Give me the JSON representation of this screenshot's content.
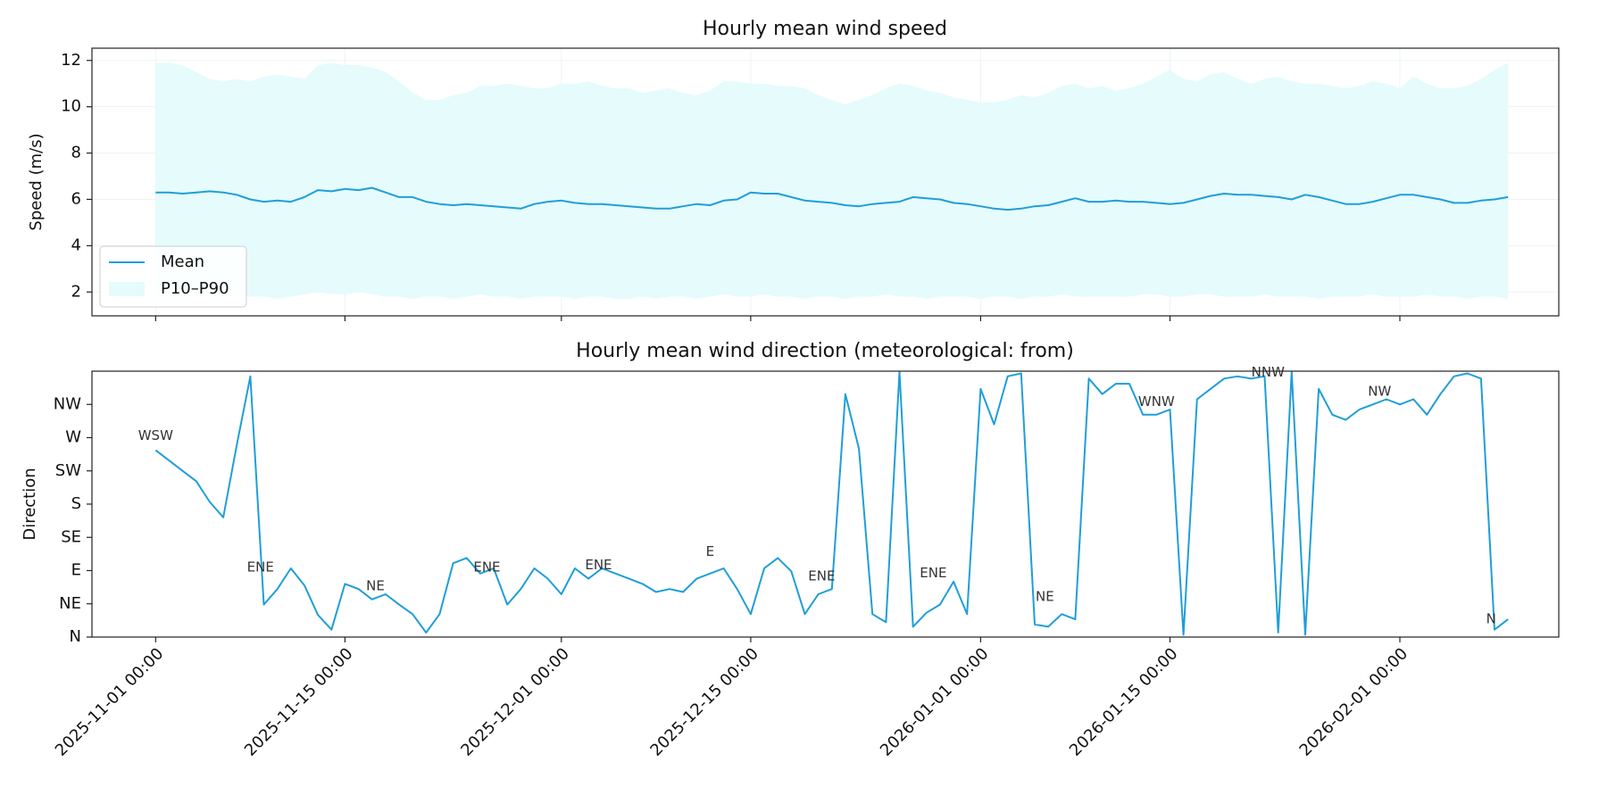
{
  "chart_data": [
    {
      "type": "line",
      "title": "Hourly mean wind speed",
      "ylabel": "Speed (m/s)",
      "ylim": [
        0.97,
        12.53
      ],
      "yticks": [
        2,
        4,
        6,
        8,
        10,
        12
      ],
      "grid": true,
      "legend": "lower left",
      "series": [
        {
          "name": "Mean",
          "color": "#1f9ed9",
          "values": [
            6.3,
            6.3,
            6.25,
            6.3,
            6.35,
            6.3,
            6.2,
            6.0,
            5.9,
            5.95,
            5.9,
            6.1,
            6.4,
            6.35,
            6.45,
            6.4,
            6.5,
            6.3,
            6.1,
            6.1,
            5.9,
            5.8,
            5.75,
            5.8,
            5.75,
            5.7,
            5.65,
            5.6,
            5.8,
            5.9,
            5.95,
            5.85,
            5.8,
            5.8,
            5.75,
            5.7,
            5.65,
            5.6,
            5.6,
            5.7,
            5.8,
            5.75,
            5.95,
            6.0,
            6.3,
            6.25,
            6.25,
            6.1,
            5.95,
            5.9,
            5.85,
            5.75,
            5.7,
            5.8,
            5.85,
            5.9,
            6.1,
            6.05,
            6.0,
            5.85,
            5.8,
            5.7,
            5.6,
            5.55,
            5.6,
            5.7,
            5.75,
            5.9,
            6.05,
            5.9,
            5.9,
            5.95,
            5.9,
            5.9,
            5.85,
            5.8,
            5.85,
            6.0,
            6.15,
            6.25,
            6.2,
            6.2,
            6.15,
            6.1,
            6.0,
            6.2,
            6.1,
            5.95,
            5.8,
            5.8,
            5.9,
            6.05,
            6.2,
            6.2,
            6.1,
            6.0,
            5.85,
            5.85,
            5.95,
            6.0,
            6.1
          ]
        }
      ],
      "band": {
        "name": "P10–P90",
        "color": "#e6fbfc",
        "lower": [
          1.8,
          1.7,
          1.8,
          1.9,
          1.8,
          1.8,
          1.9,
          1.8,
          1.8,
          1.7,
          1.8,
          1.9,
          2.0,
          1.9,
          1.9,
          2.0,
          1.9,
          1.8,
          1.8,
          1.7,
          1.8,
          1.8,
          1.7,
          1.8,
          1.9,
          1.8,
          1.8,
          1.7,
          1.8,
          1.8,
          1.8,
          1.7,
          1.8,
          1.8,
          1.7,
          1.7,
          1.8,
          1.7,
          1.8,
          1.8,
          1.7,
          1.8,
          1.9,
          1.8,
          1.8,
          1.9,
          1.8,
          1.8,
          1.7,
          1.8,
          1.8,
          1.7,
          1.8,
          1.8,
          1.9,
          1.8,
          1.8,
          1.7,
          1.8,
          1.8,
          1.8,
          1.7,
          1.8,
          1.8,
          1.7,
          1.8,
          1.8,
          1.9,
          1.8,
          1.8,
          1.8,
          1.8,
          1.8,
          1.9,
          1.9,
          1.8,
          1.8,
          1.9,
          1.9,
          1.8,
          1.8,
          1.8,
          1.9,
          1.8,
          1.8,
          1.8,
          1.7,
          1.8,
          1.8,
          1.8,
          1.9,
          1.8,
          1.8,
          1.8,
          1.9,
          1.8,
          1.8,
          1.7,
          1.8,
          1.8,
          1.7
        ],
        "upper": [
          11.9,
          11.9,
          11.8,
          11.5,
          11.2,
          11.1,
          11.2,
          11.1,
          11.3,
          11.4,
          11.3,
          11.2,
          11.8,
          11.9,
          11.8,
          11.8,
          11.7,
          11.5,
          11.1,
          10.6,
          10.3,
          10.3,
          10.5,
          10.6,
          10.9,
          10.9,
          11.0,
          10.9,
          10.8,
          10.8,
          11.0,
          11.0,
          11.1,
          10.9,
          10.8,
          10.8,
          10.6,
          10.7,
          10.8,
          10.6,
          10.5,
          10.7,
          11.1,
          11.1,
          11.0,
          11.0,
          10.9,
          10.9,
          10.8,
          10.5,
          10.3,
          10.1,
          10.3,
          10.5,
          10.8,
          11.0,
          10.9,
          10.7,
          10.6,
          10.4,
          10.3,
          10.2,
          10.2,
          10.3,
          10.5,
          10.4,
          10.6,
          10.9,
          11.0,
          10.8,
          10.9,
          10.7,
          10.8,
          11.0,
          11.3,
          11.6,
          11.2,
          11.1,
          11.4,
          11.5,
          11.2,
          11.0,
          11.2,
          11.3,
          11.1,
          11.0,
          11.0,
          10.9,
          10.8,
          10.9,
          11.1,
          11.0,
          10.8,
          11.3,
          11.0,
          10.8,
          10.8,
          10.9,
          11.2,
          11.6,
          11.9
        ]
      }
    },
    {
      "type": "line",
      "title": "Hourly mean wind direction (meteorological: from)",
      "ylabel": "Direction",
      "ylim": [
        0,
        360
      ],
      "yticks": [
        {
          "value": 0,
          "label": "N"
        },
        {
          "value": 45,
          "label": "NE"
        },
        {
          "value": 90,
          "label": "E"
        },
        {
          "value": 135,
          "label": "SE"
        },
        {
          "value": 180,
          "label": "S"
        },
        {
          "value": 225,
          "label": "SW"
        },
        {
          "value": 270,
          "label": "W"
        },
        {
          "value": 315,
          "label": "NW"
        }
      ],
      "xlim": [
        "2025-10-27 07:00",
        "2026-02-12 18:00"
      ],
      "xticks": [
        "2025-11-01 00:00",
        "2025-11-15 00:00",
        "2025-12-01 00:00",
        "2025-12-15 00:00",
        "2026-01-01 00:00",
        "2026-01-15 00:00",
        "2026-02-01 00:00"
      ],
      "x": [
        "2025-11-01 00:00",
        "2025-11-02 00:00",
        "2025-11-03 00:00",
        "2025-11-04 00:00",
        "2025-11-05 00:00",
        "2025-11-06 00:00",
        "2025-11-07 00:00",
        "2025-11-08 00:00",
        "2025-11-09 00:00",
        "2025-11-10 00:00",
        "2025-11-11 00:00",
        "2025-11-12 00:00",
        "2025-11-13 00:00",
        "2025-11-14 00:00",
        "2025-11-15 00:00",
        "2025-11-16 00:00",
        "2025-11-17 00:00",
        "2025-11-18 00:00",
        "2025-11-19 00:00",
        "2025-11-20 00:00",
        "2025-11-21 00:00",
        "2025-11-22 00:00",
        "2025-11-23 00:00",
        "2025-11-24 00:00",
        "2025-11-25 00:00",
        "2025-11-26 00:00",
        "2025-11-27 00:00",
        "2025-11-28 00:00",
        "2025-11-29 00:00",
        "2025-11-30 00:00",
        "2025-12-01 00:00",
        "2025-12-02 00:00",
        "2025-12-03 00:00",
        "2025-12-04 00:00",
        "2025-12-05 00:00",
        "2025-12-06 00:00",
        "2025-12-07 00:00",
        "2025-12-08 00:00",
        "2025-12-09 00:00",
        "2025-12-10 00:00",
        "2025-12-11 00:00",
        "2025-12-12 00:00",
        "2025-12-13 00:00",
        "2025-12-14 00:00",
        "2025-12-15 00:00",
        "2025-12-16 00:00",
        "2025-12-17 00:00",
        "2025-12-18 00:00",
        "2025-12-19 00:00",
        "2025-12-20 00:00",
        "2025-12-21 00:00",
        "2025-12-22 00:00",
        "2025-12-23 00:00",
        "2025-12-24 00:00",
        "2025-12-25 00:00",
        "2025-12-26 00:00",
        "2025-12-27 00:00",
        "2025-12-28 00:00",
        "2025-12-29 00:00",
        "2025-12-30 00:00",
        "2025-12-31 00:00",
        "2026-01-01 00:00",
        "2026-01-02 00:00",
        "2026-01-03 00:00",
        "2026-01-04 00:00",
        "2026-01-05 00:00",
        "2026-01-06 00:00",
        "2026-01-07 00:00",
        "2026-01-08 00:00",
        "2026-01-09 00:00",
        "2026-01-10 00:00",
        "2026-01-11 00:00",
        "2026-01-12 00:00",
        "2026-01-13 00:00",
        "2026-01-14 00:00",
        "2026-01-15 00:00",
        "2026-01-16 00:00",
        "2026-01-17 00:00",
        "2026-01-18 00:00",
        "2026-01-19 00:00",
        "2026-01-20 00:00",
        "2026-01-21 00:00",
        "2026-01-22 00:00",
        "2026-01-23 00:00",
        "2026-01-24 00:00",
        "2026-01-25 00:00",
        "2026-01-26 00:00",
        "2026-01-27 00:00",
        "2026-01-28 00:00",
        "2026-01-29 00:00",
        "2026-01-30 00:00",
        "2026-01-31 00:00",
        "2026-02-01 00:00",
        "2026-02-02 00:00",
        "2026-02-03 00:00",
        "2026-02-04 00:00",
        "2026-02-05 00:00",
        "2026-02-06 00:00",
        "2026-02-07 00:00",
        "2026-02-08 00:00",
        "2026-02-09 00:00"
      ],
      "color": "#1f9ed9",
      "values": [
        253,
        239,
        225,
        211,
        183,
        162,
        260,
        353,
        44,
        65,
        93,
        70,
        30,
        10,
        72,
        65,
        51,
        58,
        44,
        31,
        6,
        31,
        100,
        107,
        86,
        93,
        44,
        65,
        93,
        79,
        58,
        93,
        79,
        93,
        86,
        79,
        72,
        61,
        65,
        61,
        79,
        86,
        93,
        65,
        31,
        93,
        107,
        89,
        31,
        58,
        65,
        329,
        255,
        31,
        20,
        359,
        14,
        33,
        44,
        75,
        31,
        336,
        288,
        353,
        357,
        17,
        14,
        31,
        24,
        350,
        329,
        343,
        343,
        301,
        301,
        308,
        3,
        322,
        336,
        350,
        353,
        350,
        353,
        6,
        359,
        3,
        336,
        301,
        294,
        308,
        315,
        322,
        315,
        322,
        301,
        329,
        353,
        357,
        350,
        10,
        24
      ],
      "annotations": [
        {
          "x": "2025-11-01 00:00",
          "y": 254,
          "text": "WSW"
        },
        {
          "x": "2025-11-08 18:00",
          "y": 76,
          "text": "ENE"
        },
        {
          "x": "2025-11-17 06:00",
          "y": 51,
          "text": "NE"
        },
        {
          "x": "2025-11-25 12:00",
          "y": 76,
          "text": "ENE"
        },
        {
          "x": "2025-12-03 18:00",
          "y": 79,
          "text": "ENE"
        },
        {
          "x": "2025-12-12 00:00",
          "y": 97,
          "text": "E"
        },
        {
          "x": "2025-12-20 06:00",
          "y": 64,
          "text": "ENE"
        },
        {
          "x": "2025-12-28 12:00",
          "y": 68,
          "text": "ENE"
        },
        {
          "x": "2026-01-05 18:00",
          "y": 36,
          "text": "NE"
        },
        {
          "x": "2026-01-14 00:00",
          "y": 300,
          "text": "WNW"
        },
        {
          "x": "2026-01-22 06:00",
          "y": 340,
          "text": "NNW"
        },
        {
          "x": "2026-01-30 12:00",
          "y": 314,
          "text": "NW"
        },
        {
          "x": "2026-02-07 18:00",
          "y": 6,
          "text": "N"
        }
      ]
    }
  ]
}
